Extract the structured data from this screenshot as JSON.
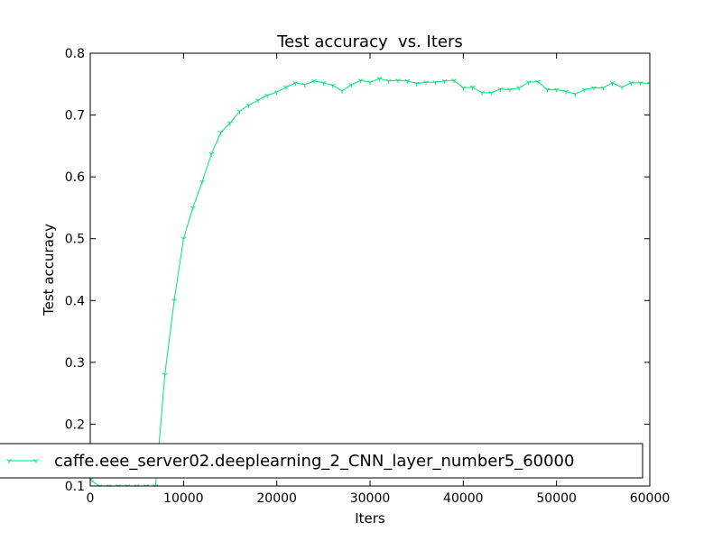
{
  "chart_data": {
    "type": "line",
    "title": "Test accuracy  vs. Iters",
    "xlabel": "Iters",
    "ylabel": "Test accuracy",
    "xlim": [
      0,
      60000
    ],
    "ylim": [
      0.1,
      0.8
    ],
    "xticks": [
      0,
      10000,
      20000,
      30000,
      40000,
      50000,
      60000
    ],
    "yticks": [
      0.1,
      0.2,
      0.3,
      0.4,
      0.5,
      0.6,
      0.7,
      0.8
    ],
    "xtick_labels": [
      "0",
      "10000",
      "20000",
      "30000",
      "40000",
      "50000",
      "60000"
    ],
    "ytick_labels": [
      "0.1",
      "0.2",
      "0.3",
      "0.4",
      "0.5",
      "0.6",
      "0.7",
      "0.8"
    ],
    "grid": false,
    "legend_position": "lower-left",
    "series": [
      {
        "name": "caffe.eee_server02.deeplearning_2_CNN_layer_number5_60000",
        "color": "#00e676",
        "marker": "tri-down",
        "x": [
          0,
          1000,
          2000,
          3000,
          4000,
          5000,
          6000,
          7000,
          8000,
          9000,
          10000,
          11000,
          12000,
          13000,
          14000,
          15000,
          16000,
          17000,
          18000,
          19000,
          20000,
          21000,
          22000,
          23000,
          24000,
          25000,
          26000,
          27000,
          28000,
          29000,
          30000,
          31000,
          32000,
          33000,
          34000,
          35000,
          36000,
          37000,
          38000,
          39000,
          40000,
          41000,
          42000,
          43000,
          44000,
          45000,
          46000,
          47000,
          48000,
          49000,
          50000,
          51000,
          52000,
          53000,
          54000,
          55000,
          56000,
          57000,
          58000,
          59000,
          60000
        ],
        "y": [
          0.11,
          0.1,
          0.1,
          0.1,
          0.1,
          0.1,
          0.1,
          0.1,
          0.28,
          0.4,
          0.5,
          0.55,
          0.592,
          0.637,
          0.672,
          0.687,
          0.706,
          0.716,
          0.724,
          0.732,
          0.737,
          0.745,
          0.752,
          0.749,
          0.755,
          0.752,
          0.748,
          0.739,
          0.749,
          0.756,
          0.753,
          0.759,
          0.755,
          0.756,
          0.755,
          0.751,
          0.753,
          0.753,
          0.755,
          0.756,
          0.744,
          0.745,
          0.736,
          0.736,
          0.742,
          0.741,
          0.744,
          0.753,
          0.754,
          0.741,
          0.741,
          0.738,
          0.734,
          0.741,
          0.744,
          0.744,
          0.752,
          0.745,
          0.752,
          0.752,
          0.751
        ]
      }
    ]
  }
}
